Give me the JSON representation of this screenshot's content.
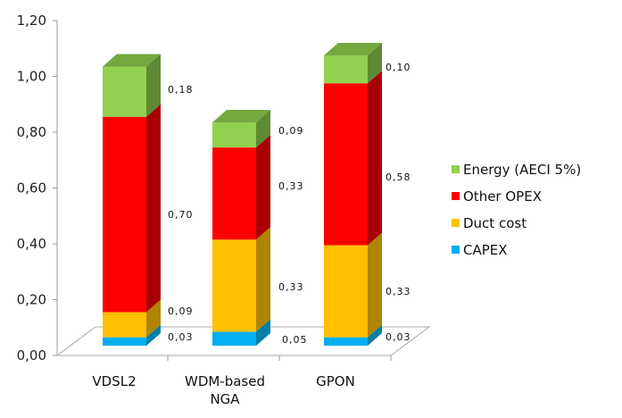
{
  "chart_data": {
    "type": "bar",
    "stacked": true,
    "style": "3d-column",
    "title": "",
    "xlabel": "",
    "ylabel": "",
    "ylim": [
      0,
      1.2
    ],
    "yticks": [
      "0,00",
      "0,20",
      "0,40",
      "0,60",
      "0,80",
      "1,00",
      "1,20"
    ],
    "ytick_values": [
      0,
      0.2,
      0.4,
      0.6,
      0.8,
      1.0,
      1.2
    ],
    "categories": [
      {
        "label_lines": [
          "VDSL2"
        ]
      },
      {
        "label_lines": [
          "WDM-based",
          "NGA"
        ]
      },
      {
        "label_lines": [
          "GPON"
        ]
      }
    ],
    "series": [
      {
        "name": "CAPEX",
        "color": "#00B0F0",
        "side": "#0080A8",
        "top": "#40C8F8",
        "values": [
          0.03,
          0.05,
          0.03
        ],
        "labels": [
          "0,03",
          "0,05",
          "0,03"
        ]
      },
      {
        "name": "Duct cost",
        "color": "#FFC000",
        "side": "#B08400",
        "top": "#FFD040",
        "values": [
          0.09,
          0.33,
          0.33
        ],
        "labels": [
          "0,09",
          "0,33",
          "0,33"
        ]
      },
      {
        "name": "Other OPEX",
        "color": "#FF0000",
        "side": "#A80000",
        "top": "#FF4040",
        "values": [
          0.7,
          0.33,
          0.58
        ],
        "labels": [
          "0,70",
          "0,33",
          "0,58"
        ]
      },
      {
        "name": "Energy (AECI 5%)",
        "color": "#92D050",
        "side": "#5E8A34",
        "top": "#76A840",
        "values": [
          0.18,
          0.09,
          0.1
        ],
        "labels": [
          "0,18",
          "0,09",
          "0,10"
        ]
      }
    ],
    "legend": {
      "position": "right",
      "order": [
        "Energy (AECI 5%)",
        "Other OPEX",
        "Duct cost",
        "CAPEX"
      ]
    },
    "grid": false
  }
}
